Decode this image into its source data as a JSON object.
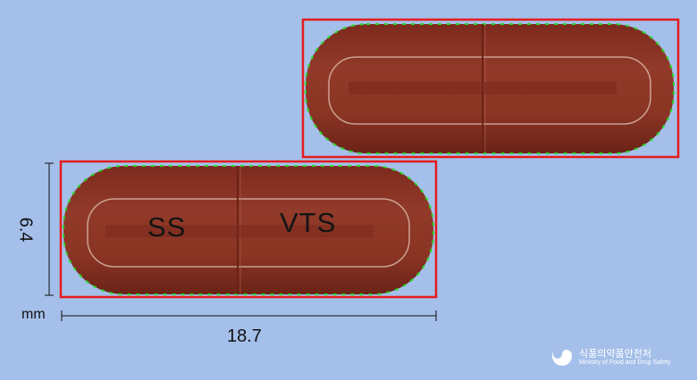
{
  "capsule_front": {
    "imprint_left": "SS",
    "imprint_right": "VTS"
  },
  "dimensions": {
    "width_value": "18.7",
    "height_value": "6.4",
    "unit": "mm"
  },
  "logo": {
    "name_kr": "식품의약품안전처",
    "name_en": "Ministry of Food and Drug Safety",
    "icon": "mfds-emblem-icon"
  },
  "colors": {
    "background": "#a4bfe9",
    "capsule": "#8c3526",
    "bounding_box": "#e41c1c",
    "edge_marks": "#2bd82b"
  }
}
